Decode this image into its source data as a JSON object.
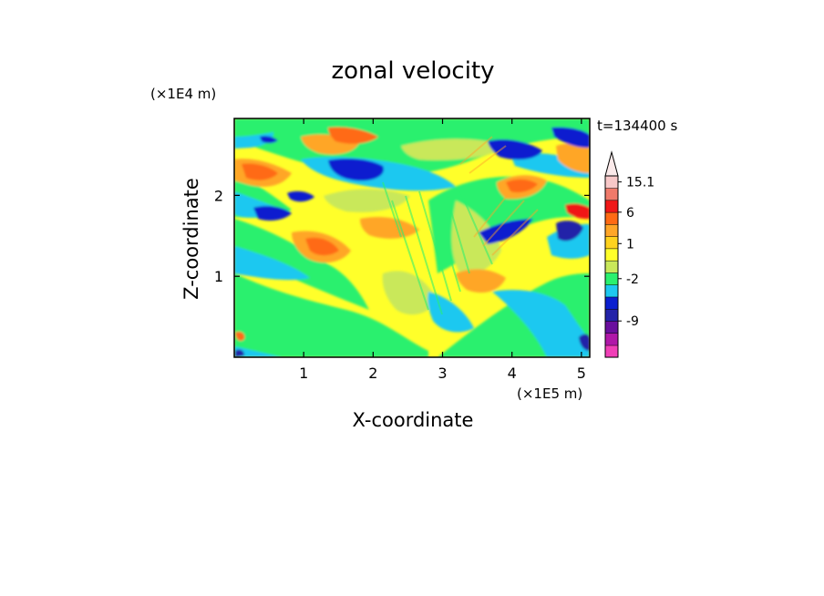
{
  "chart_data": {
    "type": "heatmap",
    "title": "zonal velocity",
    "xlabel": "X-coordinate",
    "ylabel": "Z-coordinate",
    "x_unit_label": "(×1E5 m)",
    "y_unit_label": "(×1E4 m)",
    "time_label": "t=134400 s",
    "xlim": [
      0,
      5.12
    ],
    "ylim": [
      0,
      2.95
    ],
    "x_ticks": [
      {
        "v": 1,
        "label": "1"
      },
      {
        "v": 2,
        "label": "2"
      },
      {
        "v": 3,
        "label": "3"
      },
      {
        "v": 4,
        "label": "4"
      },
      {
        "v": 5,
        "label": "5"
      }
    ],
    "y_ticks": [
      {
        "v": 1,
        "label": "1"
      },
      {
        "v": 2,
        "label": "2"
      }
    ],
    "colorbar": {
      "colors": [
        "#f03fb7",
        "#b018a8",
        "#6a0f9e",
        "#2323a8",
        "#0b1fcf",
        "#1ec8f0",
        "#2af06e",
        "#c9e85a",
        "#ffff2a",
        "#ffd21e",
        "#ffa628",
        "#ff6a14",
        "#f01818",
        "#f07a6a",
        "#f8c8c8"
      ],
      "labels": [
        {
          "idx": 14,
          "text": "15.1"
        },
        {
          "idx": 11.5,
          "text": "6"
        },
        {
          "idx": 8.9,
          "text": "1"
        },
        {
          "idx": 6.0,
          "text": "-2"
        },
        {
          "idx": 2.5,
          "text": "-9"
        }
      ]
    }
  }
}
